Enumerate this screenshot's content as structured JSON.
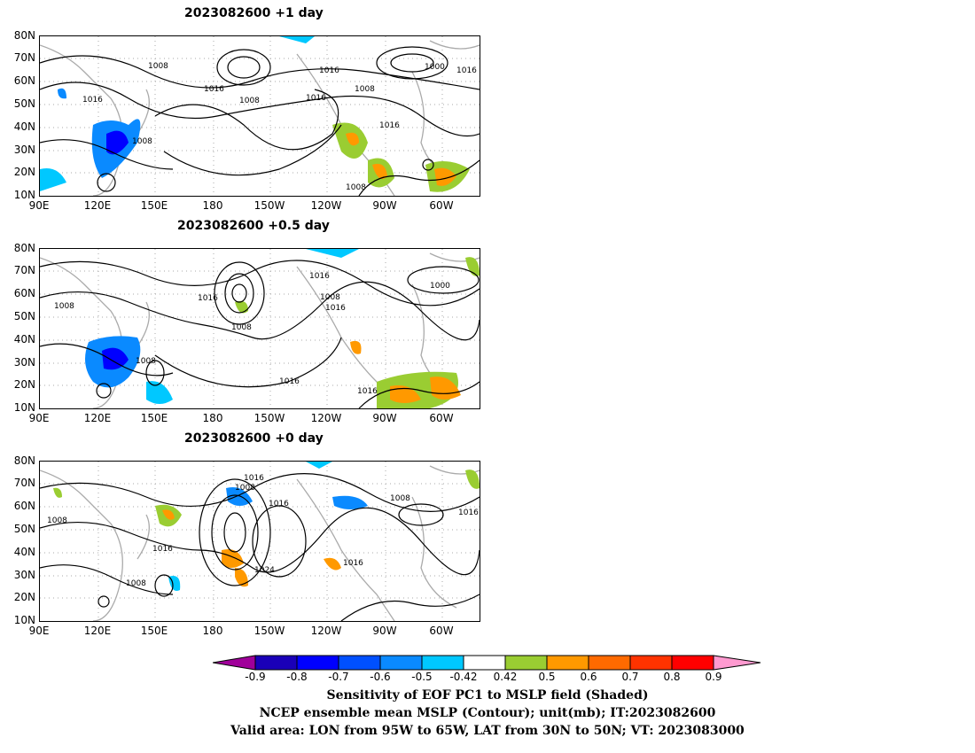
{
  "panels": [
    {
      "title": "2023082600  +1 day",
      "contour_labels": [
        "1008",
        "1016",
        "1016",
        "1008",
        "1016",
        "1008",
        "1000",
        "1016",
        "1016",
        "1016",
        "1008",
        "1008"
      ]
    },
    {
      "title": "2023082600  +0.5 day",
      "contour_labels": [
        "1016",
        "1008",
        "1008",
        "1016",
        "1008",
        "1016",
        "1000",
        "1008",
        "1016",
        "1016"
      ]
    },
    {
      "title": "2023082600  +0 day",
      "contour_labels": [
        "1016",
        "1008",
        "1016",
        "1008",
        "1008",
        "1016",
        "1016",
        "1024",
        "1016",
        "1008"
      ]
    }
  ],
  "lat_labels": [
    "80N",
    "70N",
    "60N",
    "50N",
    "40N",
    "30N",
    "20N",
    "10N"
  ],
  "lon_labels": [
    "90E",
    "120E",
    "150E",
    "180",
    "150W",
    "120W",
    "90W",
    "60W"
  ],
  "colorbar": {
    "labels": [
      "-0.9",
      "-0.8",
      "-0.7",
      "-0.6",
      "-0.5",
      "-0.42",
      "0.42",
      "0.5",
      "0.6",
      "0.7",
      "0.8",
      "0.9"
    ],
    "colors": [
      "#a0009a",
      "#1a00b8",
      "#0000ff",
      "#0050ff",
      "#0a8aff",
      "#00c8ff",
      "#ffffff",
      "#9acd32",
      "#ff9900",
      "#ff6a00",
      "#ff3300",
      "#ff0000",
      "#ff9ad0"
    ]
  },
  "captions": [
    "Sensitivity of EOF PC1 to MSLP field (Shaded)",
    "NCEP ensemble mean MSLP (Contour); unit(mb); IT:2023082600",
    "Valid area: LON from 95W to 65W, LAT from 30N to 50N; VT: 2023083000"
  ]
}
